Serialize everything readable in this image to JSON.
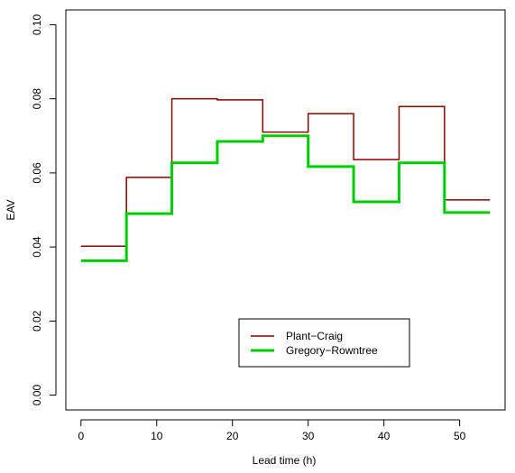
{
  "chart_data": {
    "type": "line",
    "step": true,
    "title": "",
    "xlabel": "Lead time (h)",
    "ylabel": "EAV",
    "xlim": [
      -2,
      56
    ],
    "ylim": [
      -0.004,
      0.104
    ],
    "x_ticks": [
      0,
      10,
      20,
      30,
      40,
      50
    ],
    "x_tick_labels": [
      "0",
      "10",
      "20",
      "30",
      "40",
      "50"
    ],
    "y_ticks": [
      0.0,
      0.02,
      0.04,
      0.06,
      0.08,
      0.1
    ],
    "y_tick_labels": [
      "0.00",
      "0.02",
      "0.04",
      "0.06",
      "0.08",
      "0.10"
    ],
    "grid": false,
    "legend": {
      "placement": "bottom-center",
      "entries": [
        "Plant−Craig",
        "Gregory−Rowntree"
      ]
    },
    "x": [
      0,
      6,
      12,
      18,
      24,
      30,
      36,
      42,
      48,
      54
    ],
    "series": [
      {
        "name": "Plant−Craig",
        "color": "#8b0000",
        "line_width": 1.5,
        "values": [
          0.0402,
          0.0588,
          0.08,
          0.0797,
          0.071,
          0.076,
          0.0636,
          0.0779,
          0.0527,
          0.0527
        ]
      },
      {
        "name": "Gregory−Rowntree",
        "color": "#00cd00",
        "line_width": 3,
        "values": [
          0.0363,
          0.049,
          0.0627,
          0.0685,
          0.07,
          0.0617,
          0.0522,
          0.0627,
          0.0493,
          0.0493
        ]
      }
    ]
  }
}
